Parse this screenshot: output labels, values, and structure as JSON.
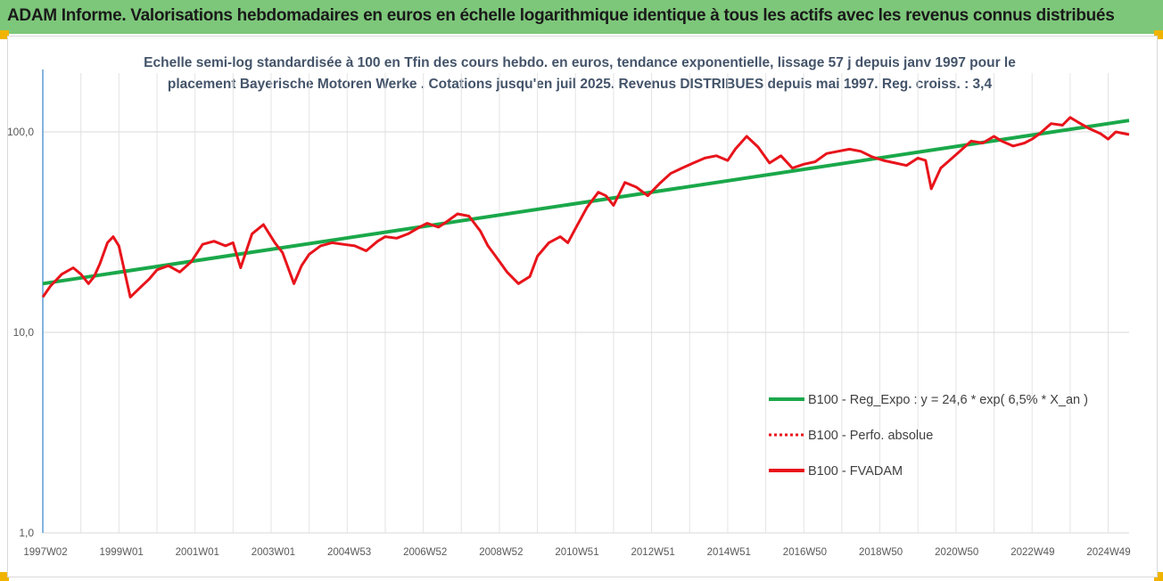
{
  "banner": {
    "title": "ADAM Informe. Valorisations hebdomadaires en euros en échelle logarithmique identique à tous les actifs avec les revenus connus distribués"
  },
  "colors": {
    "banner_bg": "#7dc77a",
    "corner": "#f0b400",
    "trend": "#1aa84a",
    "fvadam": "#e8141b",
    "perfo": "#e8141b",
    "title_text": "#44546a",
    "grid": "#d9d9d9"
  },
  "chart_data": {
    "type": "line",
    "title_lines": [
      "Echelle semi-log standardisée à 100 en Tfin des cours hebdo. en euros, tendance exponentielle, lissage 57 j depuis janv 1997 pour le",
      "placement Bayerische Motoren Werke . Cotations jusqu'en juil 2025. Revenus DISTRIBUES depuis mai 1997.  Reg. croiss. : 3,4"
    ],
    "y_scale": "log",
    "ylim": [
      1,
      200
    ],
    "y_ticks": [
      "1,0",
      "10,0",
      "100,0"
    ],
    "x_ticks": [
      "1997W02",
      "1999W01",
      "2001W01",
      "2003W01",
      "2004W53",
      "2006W52",
      "2008W52",
      "2010W51",
      "2012W51",
      "2014W51",
      "2016W50",
      "2018W50",
      "2020W50",
      "2022W49",
      "2024W49"
    ],
    "xlim": [
      1997.0,
      2025.55
    ],
    "grid": true,
    "legend_position": "lower-right",
    "legend": [
      {
        "label": "B100 - Reg_Expo : y = 24,6 * exp( 6,5% *  X_an )",
        "style": "solid",
        "color": "#1aa84a"
      },
      {
        "label": "B100 - Perfo. absolue",
        "style": "dotted",
        "color": "#e8141b"
      },
      {
        "label": "B100 - FVADAM",
        "style": "solid",
        "color": "#e8141b"
      }
    ],
    "series": [
      {
        "name": "B100 - Reg_Expo : y = 24,6 * exp( 6,5% *  X_an )",
        "x": [
          1997.0,
          2025.55
        ],
        "y": [
          17.5,
          114.0
        ]
      },
      {
        "name": "B100 - FVADAM",
        "x": [
          1997.0,
          1997.2,
          1997.5,
          1997.8,
          1998.0,
          1998.2,
          1998.35,
          1998.5,
          1998.7,
          1998.85,
          1999.0,
          1999.3,
          1999.6,
          1999.8,
          2000.0,
          2000.3,
          2000.6,
          2000.9,
          2001.2,
          2001.5,
          2001.8,
          2002.0,
          2002.2,
          2002.5,
          2002.8,
          2003.1,
          2003.3,
          2003.6,
          2003.8,
          2004.0,
          2004.3,
          2004.6,
          2004.9,
          2005.2,
          2005.5,
          2005.8,
          2006.0,
          2006.3,
          2006.6,
          2006.9,
          2007.1,
          2007.4,
          2007.6,
          2007.9,
          2008.2,
          2008.5,
          2008.7,
          2008.9,
          2009.2,
          2009.5,
          2009.8,
          2010.0,
          2010.3,
          2010.6,
          2010.8,
          2011.0,
          2011.3,
          2011.6,
          2011.8,
          2012.0,
          2012.3,
          2012.6,
          2012.9,
          2013.2,
          2013.5,
          2013.8,
          2014.1,
          2014.4,
          2014.7,
          2015.0,
          2015.2,
          2015.5,
          2015.8,
          2016.1,
          2016.4,
          2016.7,
          2017.0,
          2017.3,
          2017.6,
          2017.9,
          2018.2,
          2018.5,
          2018.8,
          2019.1,
          2019.4,
          2019.7,
          2020.0,
          2020.2,
          2020.35,
          2020.6,
          2020.9,
          2021.1,
          2021.4,
          2021.7,
          2022.0,
          2022.2,
          2022.5,
          2022.8,
          2023.0,
          2023.2,
          2023.5,
          2023.8,
          2024.0,
          2024.2,
          2024.5,
          2024.8,
          2025.0,
          2025.2,
          2025.55
        ],
        "y": [
          15.0,
          17.0,
          19.5,
          21.0,
          19.5,
          17.5,
          19.0,
          22.0,
          28.0,
          30.0,
          27.0,
          15.0,
          17.0,
          18.5,
          20.5,
          21.5,
          20.0,
          22.5,
          27.5,
          28.5,
          27.0,
          28.0,
          21.0,
          31.0,
          34.5,
          28.0,
          25.0,
          17.5,
          21.5,
          24.5,
          27.0,
          28.0,
          27.5,
          27.0,
          25.5,
          28.5,
          30.0,
          29.5,
          31.0,
          33.5,
          35.0,
          33.5,
          35.5,
          39.0,
          38.0,
          32.0,
          27.0,
          24.0,
          20.0,
          17.5,
          19.0,
          24.0,
          28.0,
          30.0,
          28.0,
          33.0,
          42.0,
          50.0,
          48.0,
          43.0,
          56.0,
          53.0,
          48.0,
          55.0,
          62.0,
          66.0,
          70.0,
          74.0,
          76.0,
          72.0,
          82.0,
          95.0,
          84.0,
          70.0,
          76.0,
          66.0,
          69.0,
          71.0,
          78.0,
          80.0,
          82.0,
          80.0,
          75.0,
          72.0,
          70.0,
          68.0,
          74.0,
          72.0,
          52.0,
          66.0,
          74.0,
          80.0,
          90.0,
          88.0,
          95.0,
          90.0,
          85.0,
          88.0,
          92.0,
          98.0,
          110.0,
          108.0,
          118.0,
          112.0,
          104.0,
          98.0,
          92.0,
          100.0,
          97.0
        ]
      }
    ]
  }
}
